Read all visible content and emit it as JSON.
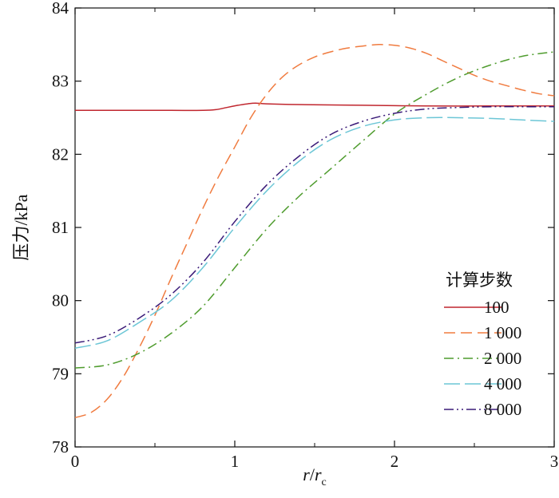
{
  "chart_data": {
    "type": "line",
    "title": "",
    "xlabel_parts": {
      "r": "r",
      "slash": "/",
      "rc": "r",
      "sub": "c"
    },
    "ylabel": "压力/kPa",
    "xlim": [
      0,
      3
    ],
    "ylim": [
      78,
      84
    ],
    "x_ticks": [
      "0",
      "1",
      "2",
      "3"
    ],
    "y_ticks": [
      "78",
      "79",
      "80",
      "81",
      "82",
      "83",
      "84"
    ],
    "grid": false,
    "legend": {
      "title": "计算步数",
      "placement": "right"
    },
    "series": [
      {
        "name": "100",
        "color": "#c0262e",
        "dash": "solid",
        "x": [
          0,
          0.3,
          0.6,
          0.8,
          0.88,
          0.95,
          1.02,
          1.08,
          1.13,
          1.2,
          1.4,
          1.8,
          2.2,
          2.6,
          3.0
        ],
        "y": [
          82.6,
          82.6,
          82.6,
          82.6,
          82.61,
          82.64,
          82.67,
          82.69,
          82.7,
          82.69,
          82.68,
          82.67,
          82.66,
          82.66,
          82.66
        ]
      },
      {
        "name": "1 000",
        "color": "#f07b3f",
        "dash": "dashed",
        "x": [
          0,
          0.1,
          0.2,
          0.3,
          0.4,
          0.5,
          0.6,
          0.7,
          0.8,
          0.9,
          1.0,
          1.1,
          1.2,
          1.3,
          1.4,
          1.5,
          1.6,
          1.7,
          1.8,
          1.9,
          2.0,
          2.1,
          2.2,
          2.3,
          2.4,
          2.5,
          2.6,
          2.7,
          2.8,
          2.9,
          3.0
        ],
        "y": [
          78.4,
          78.47,
          78.65,
          78.95,
          79.35,
          79.8,
          80.3,
          80.78,
          81.26,
          81.7,
          82.1,
          82.5,
          82.82,
          83.06,
          83.22,
          83.33,
          83.4,
          83.45,
          83.48,
          83.5,
          83.49,
          83.45,
          83.38,
          83.28,
          83.18,
          83.08,
          83.0,
          82.94,
          82.88,
          82.83,
          82.8
        ]
      },
      {
        "name": "2 000",
        "color": "#4f9c2e",
        "dash": "dashdot",
        "x": [
          0,
          0.2,
          0.4,
          0.6,
          0.8,
          1.0,
          1.2,
          1.4,
          1.6,
          1.8,
          2.0,
          2.2,
          2.4,
          2.6,
          2.8,
          3.0
        ],
        "y": [
          79.08,
          79.12,
          79.28,
          79.55,
          79.92,
          80.45,
          80.98,
          81.42,
          81.8,
          82.18,
          82.55,
          82.82,
          83.05,
          83.22,
          83.34,
          83.4
        ]
      },
      {
        "name": "4 000",
        "color": "#6cc6d6",
        "dash": "longdash",
        "x": [
          0,
          0.2,
          0.4,
          0.6,
          0.8,
          1.0,
          1.2,
          1.4,
          1.6,
          1.8,
          2.0,
          2.2,
          2.4,
          2.6,
          2.8,
          3.0
        ],
        "y": [
          79.35,
          79.45,
          79.7,
          80.0,
          80.45,
          81.0,
          81.5,
          81.9,
          82.2,
          82.38,
          82.47,
          82.5,
          82.5,
          82.49,
          82.47,
          82.45
        ]
      },
      {
        "name": "8 000",
        "color": "#3a1a78",
        "dash": "dashdotdot",
        "x": [
          0,
          0.2,
          0.4,
          0.6,
          0.8,
          1.0,
          1.2,
          1.4,
          1.6,
          1.8,
          2.0,
          2.2,
          2.4,
          2.6,
          2.8,
          3.0
        ],
        "y": [
          79.42,
          79.52,
          79.76,
          80.08,
          80.52,
          81.08,
          81.58,
          81.97,
          82.27,
          82.45,
          82.56,
          82.62,
          82.64,
          82.65,
          82.65,
          82.65
        ]
      }
    ]
  }
}
